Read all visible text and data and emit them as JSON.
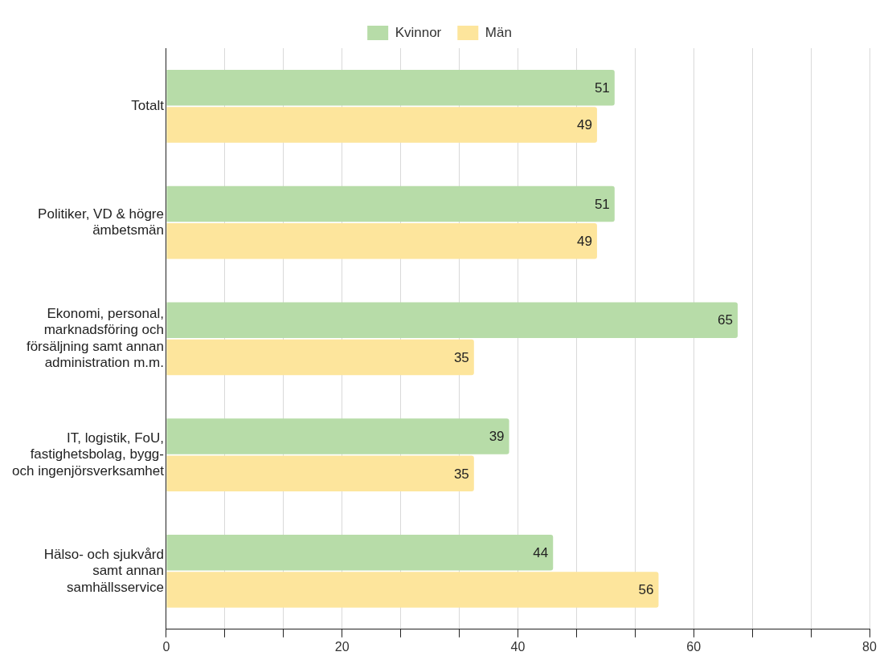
{
  "chart_data": {
    "type": "bar",
    "orientation": "horizontal",
    "categories": [
      "Totalt",
      "Politiker, VD & högre ämbetsmän",
      "Ekonomi, personal, marknadsföring och försäljning samt annan administration m.m.",
      "IT, logistik, FoU, fastighetsbolag, bygg- och ingenjörsverksamhet",
      "Hälso- och sjukvård samt annan samhällsservice"
    ],
    "series": [
      {
        "name": "Kvinnor",
        "color": "#b7dca8",
        "values": [
          51,
          51,
          65,
          39,
          44
        ]
      },
      {
        "name": "Män",
        "color": "#fde59c",
        "values": [
          49,
          49,
          35,
          35,
          56
        ]
      }
    ],
    "xlim": [
      0,
      80
    ],
    "xticks": [
      0,
      {
        "value": 6.67,
        "label": null
      },
      {
        "value": 13.33,
        "label": null
      },
      20,
      {
        "value": 26.67,
        "label": null
      },
      {
        "value": 33.33,
        "label": null
      },
      40,
      {
        "value": 46.67,
        "label": null
      },
      {
        "value": 53.33,
        "label": null
      },
      60,
      {
        "value": 66.67,
        "label": null
      },
      {
        "value": 73.33,
        "label": null
      },
      80
    ],
    "grid": "x",
    "legend": "top",
    "data_labels": true
  }
}
